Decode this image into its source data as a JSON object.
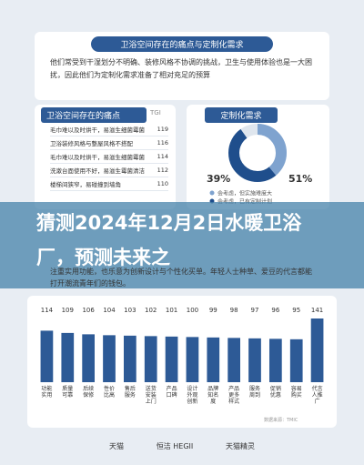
{
  "header": {
    "title": "卫浴空间存在的痛点与定制化需求",
    "text": "他们常受到干湿划分不明确、装修风格不协调的挑战，卫生与使用体验也是一大困扰，因此他们为定制化需求准备了相对充足的预算"
  },
  "pain_panel": {
    "title": "卫浴空间存在的痛点",
    "column": "TGI",
    "rows": [
      [
        "毛巾难以及时烘干，易滋生细菌霉菌",
        "119"
      ],
      [
        "卫浴装修风格与整屋风格不搭配",
        "116"
      ],
      [
        "毛巾难以及时烘干，易滋生细菌霉菌",
        "114"
      ],
      [
        "洗漱台面使用不好，易滋生霉菌清洁",
        "112"
      ],
      [
        "楼梯间狭窄，易碰撞到墙角",
        "110"
      ]
    ]
  },
  "demand_panel": {
    "title": "定制化需求",
    "chart": {
      "type": "donut",
      "values": [
        39,
        51
      ],
      "value_labels": [
        "39%",
        "51%"
      ],
      "colors": [
        "#7fa3cf",
        "#1f4e8c"
      ]
    },
    "legend": [
      "会考虑，但实施难度大",
      "会考虑，已有定制计划"
    ]
  },
  "banner": {
    "title": "猜测2024年12月2日水暖卫浴厂，预测未来之"
  },
  "intro": "注重实用功能，也乐意为创新设计与个性化买单。年轻人士种草、爱豆的代言都能打开潮流青年们的钱包。",
  "chart_data": {
    "type": "bar",
    "color": "#2d5a96",
    "categories": [
      "功能实用",
      "质量可靠",
      "后续保修",
      "性价比高",
      "售后服务",
      "送货安装上门",
      "产品口碑",
      "设计外观创新",
      "品牌知名度",
      "产品更多样式",
      "服务周到",
      "促销优惠",
      "容易购买",
      "代言人推广"
    ],
    "values": [
      114,
      109,
      106,
      104,
      103,
      102,
      101,
      100,
      99,
      98,
      97,
      96,
      95,
      141
    ]
  },
  "footer": {
    "source": "数据来源：TMIC",
    "logos": [
      "天猫",
      "恒洁 HEGII",
      "天猫精灵"
    ]
  }
}
